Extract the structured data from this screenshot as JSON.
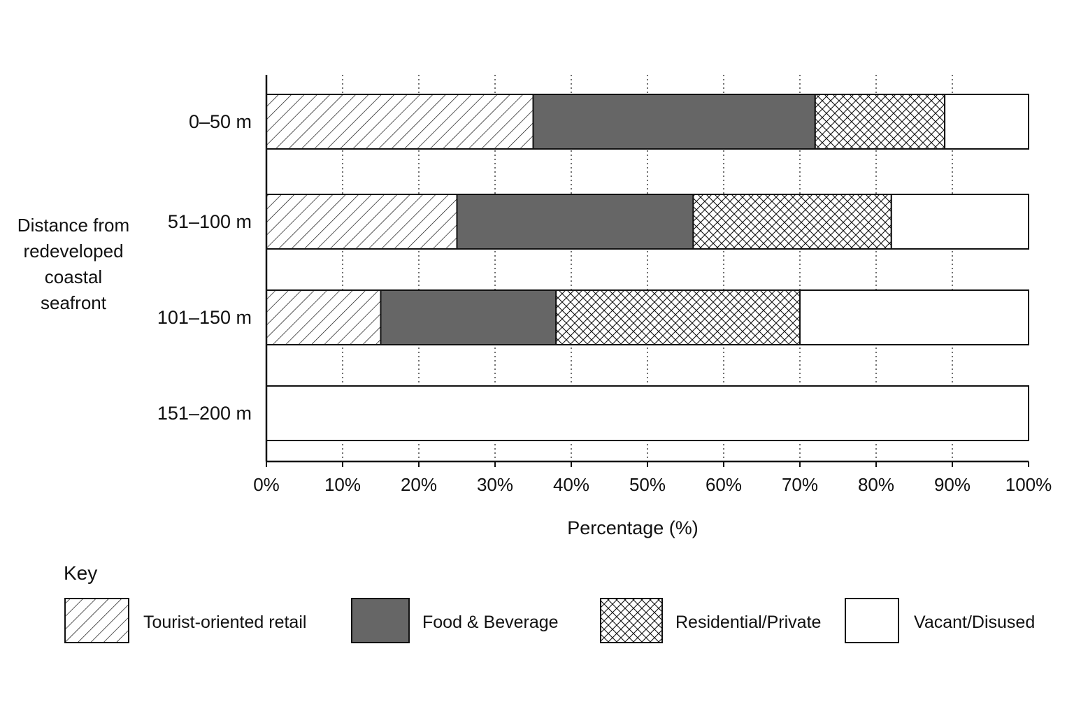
{
  "chart_data": {
    "type": "bar",
    "orientation": "horizontal",
    "stacked": true,
    "categories": [
      "0–50 m",
      "51–100 m",
      "101–150 m",
      "151–200 m"
    ],
    "series": [
      {
        "name": "Tourist-oriented retail",
        "values": [
          35,
          25,
          15,
          0
        ],
        "color": "#ffffff",
        "pattern": "diagonal-hatch"
      },
      {
        "name": "Food & Beverage",
        "values": [
          37,
          31,
          23,
          0
        ],
        "color": "#666666",
        "pattern": "solid"
      },
      {
        "name": "Residential/Private",
        "values": [
          17,
          26,
          32,
          0
        ],
        "color": "#ffffff",
        "pattern": "crosshatch"
      },
      {
        "name": "Vacant/Disused",
        "values": [
          11,
          18,
          30,
          100
        ],
        "color": "#ffffff",
        "pattern": "none"
      }
    ],
    "xlim": [
      0,
      100
    ],
    "xticks": [
      0,
      10,
      20,
      30,
      40,
      50,
      60,
      70,
      80,
      90,
      100
    ],
    "xtick_labels": [
      "0%",
      "10%",
      "20%",
      "30%",
      "40%",
      "50%",
      "60%",
      "70%",
      "80%",
      "90%",
      "100%"
    ],
    "xlabel": "Percentage (%)",
    "ylabel_lines": [
      "Distance from",
      "redeveloped",
      "coastal",
      "seafront"
    ],
    "legend_title": "Key",
    "legend_position": "bottom",
    "grid": "vertical dotted"
  }
}
